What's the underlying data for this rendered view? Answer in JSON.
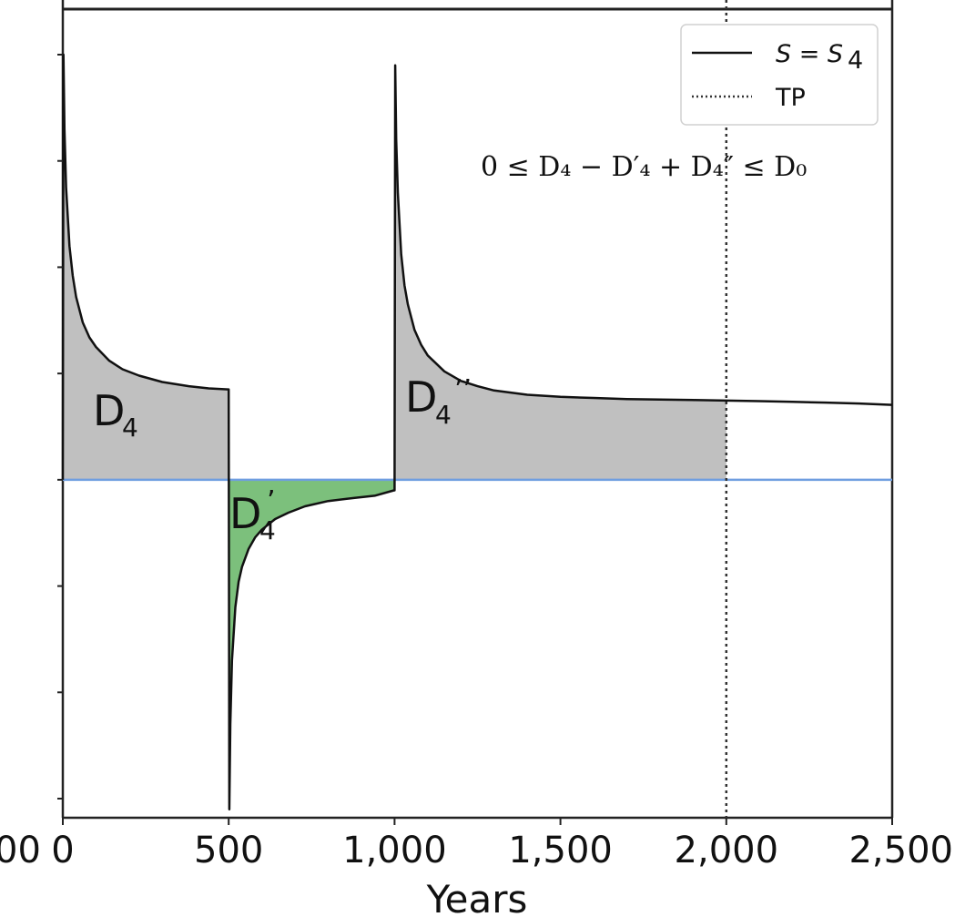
{
  "chart_data": {
    "type": "line",
    "title": "",
    "xlabel": "Years",
    "ylabel": "",
    "xlim": [
      0,
      2500
    ],
    "ylim": [
      -300,
      400
    ],
    "x_ticks": [
      0,
      500,
      1000,
      1500,
      2000,
      2500
    ],
    "x_tick_labels": [
      "0",
      "500",
      "1,000",
      "1,500",
      "2,000",
      "2,500"
    ],
    "left_edge_tick_fragment": "00",
    "y_ticks": [
      -300,
      -200,
      -100,
      0,
      100,
      200,
      300,
      400
    ],
    "y_tick_labels_visible": false,
    "grid": false,
    "legend_position": "top-right",
    "legend": [
      {
        "label": "S = S",
        "subscript": "4",
        "style": "solid"
      },
      {
        "label": "TP",
        "style": "dotted"
      }
    ],
    "annotation": {
      "equation": "0 ≤ D₄ − D′₄ + D₄″ ≤ D₀"
    },
    "series": [
      {
        "name": "S = S4",
        "style": "solid",
        "color": "#111111",
        "x": [
          0,
          2,
          5,
          10,
          20,
          30,
          40,
          60,
          80,
          100,
          140,
          180,
          230,
          300,
          380,
          440,
          498,
          500,
          502,
          505,
          510,
          520,
          530,
          540,
          560,
          580,
          600,
          640,
          680,
          730,
          800,
          880,
          940,
          998,
          1000,
          1002,
          1005,
          1010,
          1020,
          1030,
          1040,
          1060,
          1080,
          1100,
          1150,
          1200,
          1250,
          1300,
          1400,
          1500,
          1600,
          1700,
          1800,
          1900,
          2000,
          2100,
          2200,
          2300,
          2400,
          2500
        ],
        "y": [
          0,
          400,
          330,
          275,
          220,
          192,
          172,
          148,
          134,
          125,
          112,
          104,
          98,
          92,
          88,
          86,
          85,
          85,
          -310,
          -230,
          -170,
          -120,
          -96,
          -82,
          -65,
          -54,
          -47,
          -37,
          -31,
          -25,
          -20,
          -17,
          -15,
          -10,
          -10,
          390,
          320,
          270,
          212,
          183,
          165,
          141,
          127,
          117,
          102,
          93,
          88,
          84,
          80,
          78,
          77,
          76,
          75.5,
          75,
          74.5,
          74,
          73.3,
          72.6,
          71.8,
          70.5
        ]
      },
      {
        "name": "TP",
        "style": "dotted",
        "color": "#333333",
        "x": [
          2000,
          2000
        ],
        "y": [
          -300,
          400
        ]
      },
      {
        "name": "baseline",
        "style": "solid",
        "color": "#6f9ee0",
        "x": [
          0,
          2500
        ],
        "y": [
          0,
          0
        ]
      }
    ],
    "regions": [
      {
        "label": "D",
        "subscript": "4",
        "prime": "",
        "x_range": [
          0,
          500
        ],
        "fill": "#c0c0c0"
      },
      {
        "label": "D",
        "subscript": "4",
        "prime": "’",
        "x_range": [
          500,
          1000
        ],
        "fill": "#7cc07c"
      },
      {
        "label": "D",
        "subscript": "4",
        "prime": "’’",
        "x_range": [
          1000,
          2000
        ],
        "fill": "#c0c0c0"
      }
    ]
  }
}
